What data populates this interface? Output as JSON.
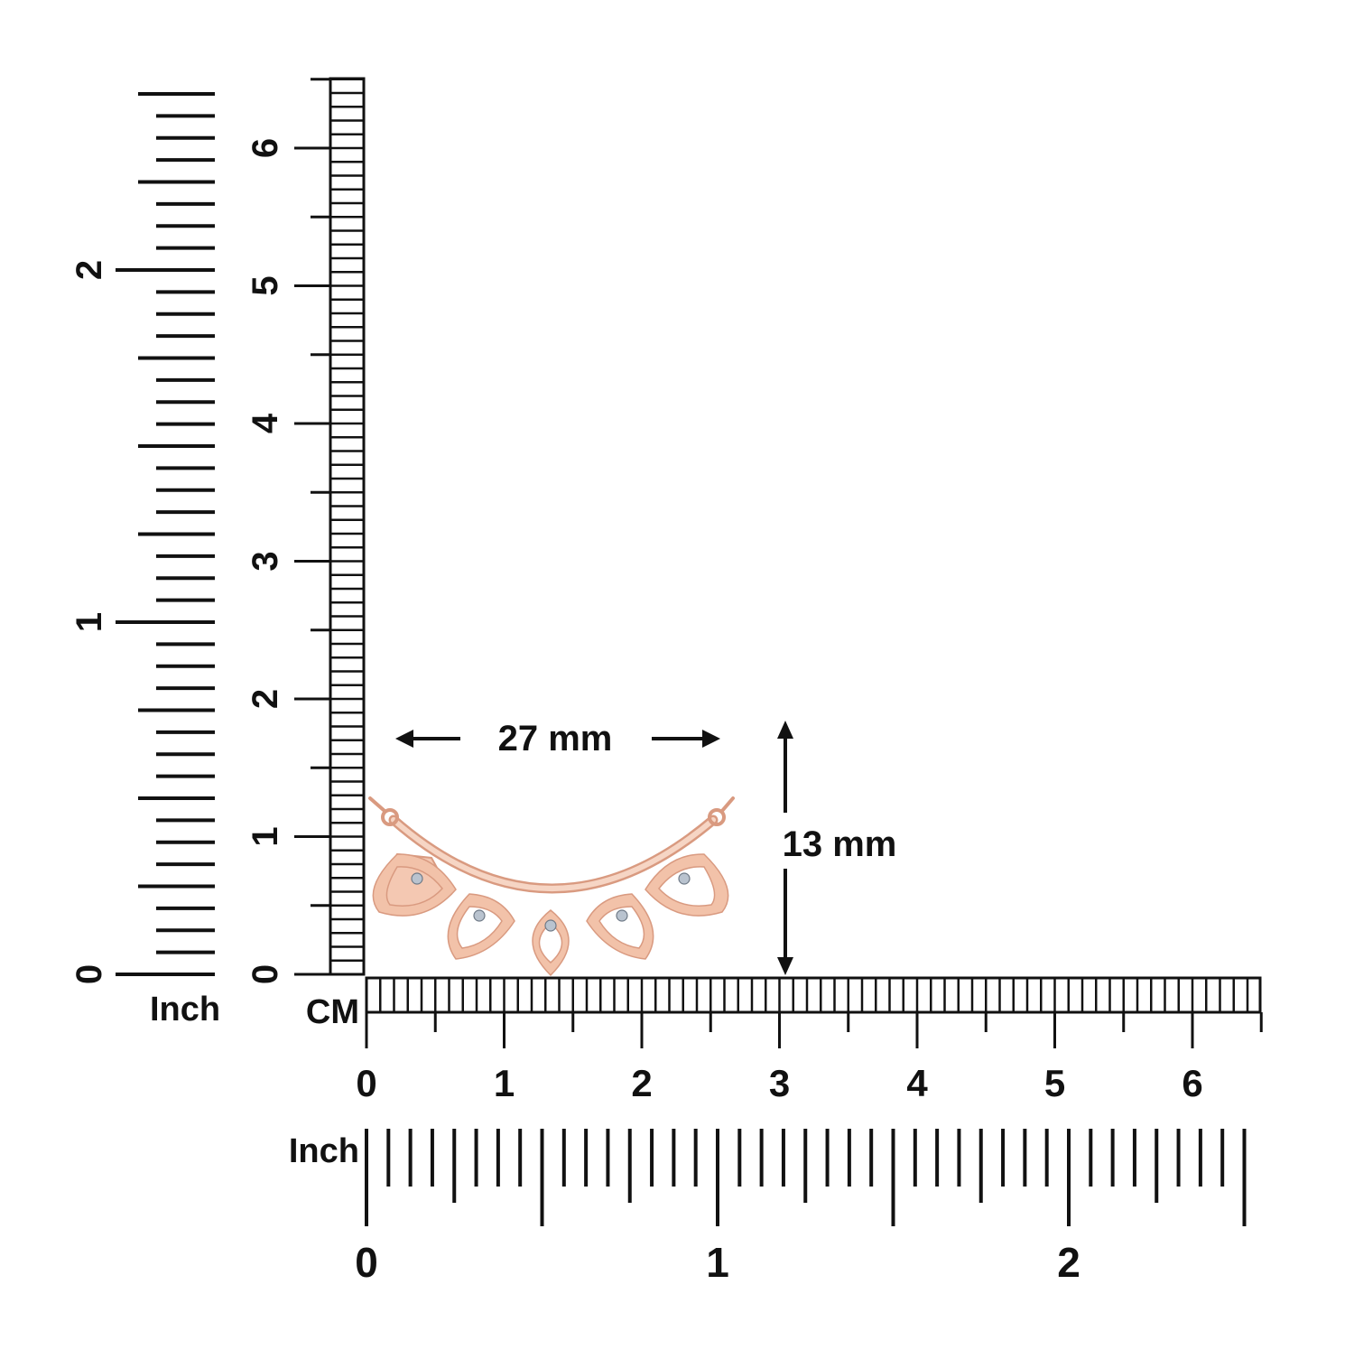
{
  "colors": {
    "ink": "#111111",
    "metal": "#f2c2a9",
    "metal_edge": "#d99a80",
    "gem": "#b9c3cf"
  },
  "left_inch_ruler": {
    "unit_label": "Inch",
    "labels": [
      "0",
      "1",
      "2"
    ]
  },
  "left_cm_ruler": {
    "labels": [
      "0",
      "1",
      "2",
      "3",
      "4",
      "5",
      "6"
    ]
  },
  "bottom_cm_ruler": {
    "unit_label": "CM",
    "labels": [
      "0",
      "1",
      "2",
      "3",
      "4",
      "5",
      "6"
    ]
  },
  "bottom_inch_ruler": {
    "unit_label": "Inch",
    "labels": [
      "0",
      "1",
      "2"
    ]
  },
  "dimensions": {
    "width_label": "27 mm",
    "height_label": "13 mm"
  },
  "product": {
    "icon": "rose-gold-pendant-icon"
  }
}
